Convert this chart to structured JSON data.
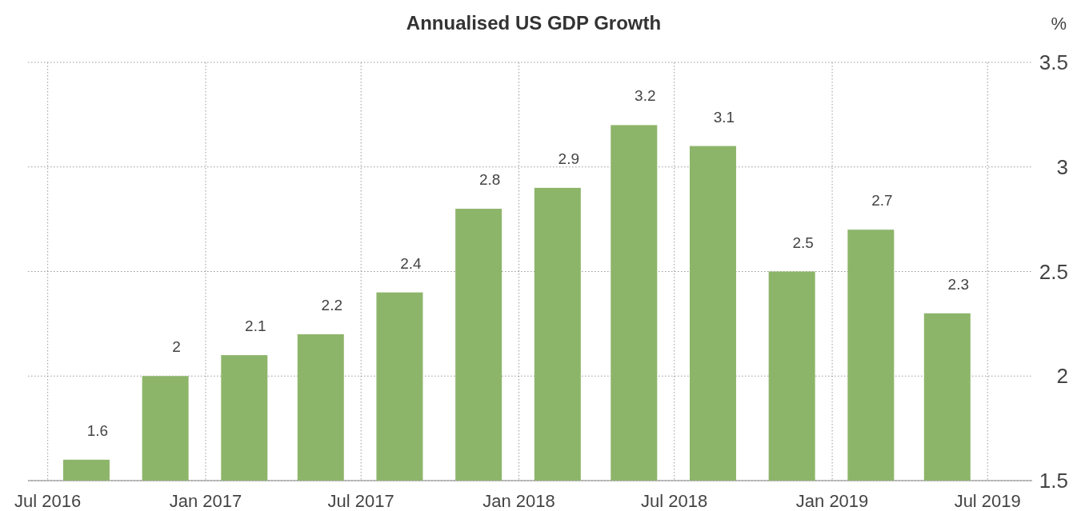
{
  "chart_data": {
    "type": "bar",
    "title": "Annualised US GDP Growth",
    "ylabel": "%",
    "x": [
      "2016-08-15",
      "2016-11-15",
      "2017-02-15",
      "2017-05-15",
      "2017-08-15",
      "2017-11-15",
      "2018-02-15",
      "2018-05-15",
      "2018-08-15",
      "2018-11-15",
      "2019-02-15",
      "2019-05-15"
    ],
    "values": [
      1.6,
      2,
      2.1,
      2.2,
      2.4,
      2.8,
      2.9,
      3.2,
      3.1,
      2.5,
      2.7,
      2.3
    ],
    "color": "#8db56a",
    "data_labels": true,
    "grid": true,
    "ylim": [
      1.5,
      3.5
    ],
    "yticks": [
      1.5,
      2,
      2.5,
      3,
      3.5
    ],
    "xlim": [
      "2016-06-08",
      "2019-08-22"
    ],
    "xticks": [
      {
        "value": "2016-07",
        "label": "Jul 2016"
      },
      {
        "value": "2017-01",
        "label": "Jan 2017"
      },
      {
        "value": "2017-07",
        "label": "Jul 2017"
      },
      {
        "value": "2018-01",
        "label": "Jan 2018"
      },
      {
        "value": "2018-07",
        "label": "Jul 2018"
      },
      {
        "value": "2019-01",
        "label": "Jan 2019"
      },
      {
        "value": "2019-07",
        "label": "Jul 2019"
      }
    ]
  }
}
